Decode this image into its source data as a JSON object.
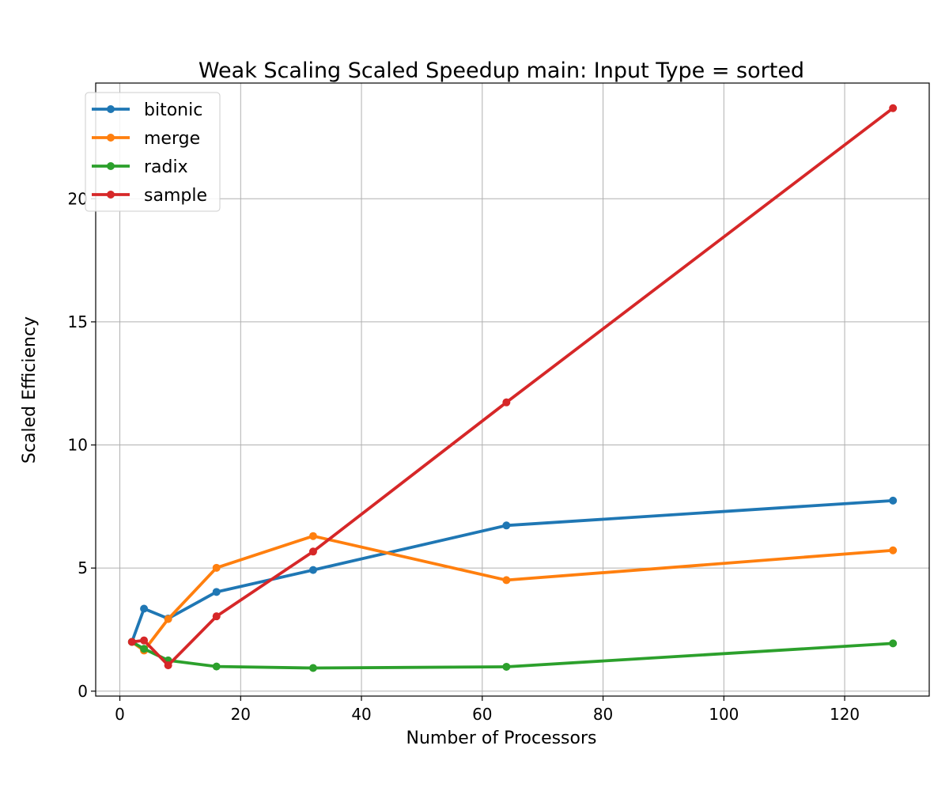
{
  "chart_data": {
    "type": "line",
    "title": "Weak Scaling Scaled Speedup main: Input Type = sorted",
    "xlabel": "Number of Processors",
    "ylabel": "Scaled Efficiency",
    "xlim": [
      -4,
      134
    ],
    "ylim": [
      -0.2,
      24.7
    ],
    "xticks": [
      0,
      20,
      40,
      60,
      80,
      100,
      120
    ],
    "yticks": [
      0,
      5,
      10,
      15,
      20
    ],
    "grid": true,
    "legend_position": "top-left",
    "x": [
      2,
      4,
      8,
      16,
      32,
      64,
      128
    ],
    "series": [
      {
        "name": "bitonic",
        "color": "#1f77b4",
        "values": [
          2.0,
          3.35,
          2.95,
          4.03,
          4.92,
          6.73,
          7.74
        ]
      },
      {
        "name": "merge",
        "color": "#ff7f0e",
        "values": [
          2.0,
          1.65,
          2.93,
          5.01,
          6.3,
          4.51,
          5.72
        ]
      },
      {
        "name": "radix",
        "color": "#2ca02c",
        "values": [
          2.0,
          1.72,
          1.25,
          1.0,
          0.94,
          0.99,
          1.94
        ]
      },
      {
        "name": "sample",
        "color": "#d62728",
        "values": [
          2.0,
          2.06,
          1.05,
          3.04,
          5.67,
          11.73,
          23.68
        ]
      }
    ]
  }
}
